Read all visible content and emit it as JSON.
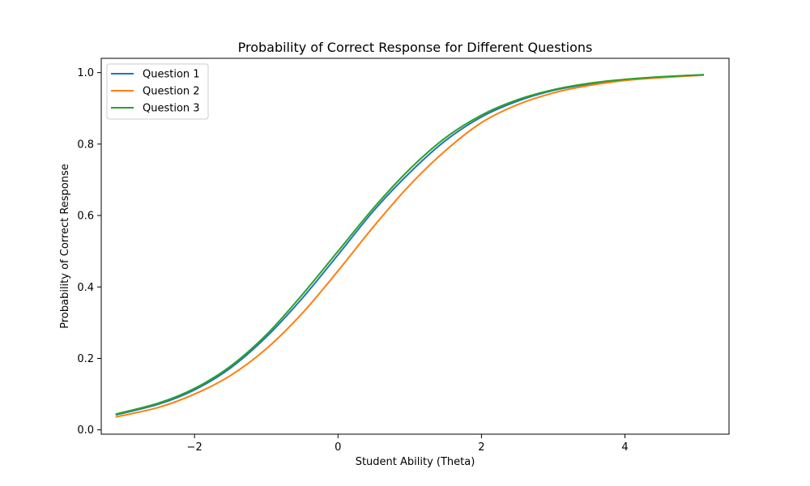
{
  "chart_data": {
    "type": "line",
    "title": "Probability of Correct Response for Different Questions",
    "xlabel": "Student Ability (Theta)",
    "ylabel": "Probability of Correct Response",
    "xlim": [
      -3.3,
      5.45
    ],
    "ylim": [
      -0.012,
      1.04
    ],
    "grid": false,
    "legend_position": "top-left",
    "x_ticks": [
      {
        "value": -2,
        "label": "−2"
      },
      {
        "value": 0,
        "label": "0"
      },
      {
        "value": 2,
        "label": "2"
      },
      {
        "value": 4,
        "label": "4"
      }
    ],
    "y_ticks": [
      {
        "value": 0.0,
        "label": "0.0"
      },
      {
        "value": 0.2,
        "label": "0.2"
      },
      {
        "value": 0.4,
        "label": "0.4"
      },
      {
        "value": 0.6,
        "label": "0.6"
      },
      {
        "value": 0.8,
        "label": "0.8"
      },
      {
        "value": 1.0,
        "label": "1.0"
      }
    ],
    "series": [
      {
        "name": "Question 1",
        "color": "#1f77b4",
        "x": [
          -3.1,
          -2.5,
          -2.0,
          -1.5,
          -1.0,
          -0.5,
          0.0,
          0.5,
          1.0,
          1.5,
          2.0,
          2.5,
          3.0,
          3.5,
          4.0,
          4.5,
          5.1
        ],
        "y": [
          0.042,
          0.072,
          0.112,
          0.173,
          0.26,
          0.368,
          0.49,
          0.614,
          0.72,
          0.81,
          0.876,
          0.92,
          0.95,
          0.968,
          0.98,
          0.988,
          0.994
        ]
      },
      {
        "name": "Question 2",
        "color": "#ff7f0e",
        "x": [
          -3.1,
          -2.5,
          -2.0,
          -1.5,
          -1.0,
          -0.5,
          0.0,
          0.5,
          1.0,
          1.5,
          2.0,
          2.5,
          3.0,
          3.5,
          4.0,
          4.5,
          5.1
        ],
        "y": [
          0.036,
          0.063,
          0.1,
          0.152,
          0.227,
          0.326,
          0.445,
          0.57,
          0.685,
          0.782,
          0.86,
          0.91,
          0.943,
          0.964,
          0.978,
          0.986,
          0.993
        ]
      },
      {
        "name": "Question 3",
        "color": "#2ca02c",
        "x": [
          -3.1,
          -2.5,
          -2.0,
          -1.5,
          -1.0,
          -0.5,
          0.0,
          0.5,
          1.0,
          1.5,
          2.0,
          2.5,
          3.0,
          3.5,
          4.0,
          4.5,
          5.1
        ],
        "y": [
          0.044,
          0.075,
          0.116,
          0.178,
          0.266,
          0.378,
          0.5,
          0.622,
          0.73,
          0.818,
          0.881,
          0.924,
          0.952,
          0.97,
          0.981,
          0.988,
          0.994
        ]
      }
    ]
  }
}
